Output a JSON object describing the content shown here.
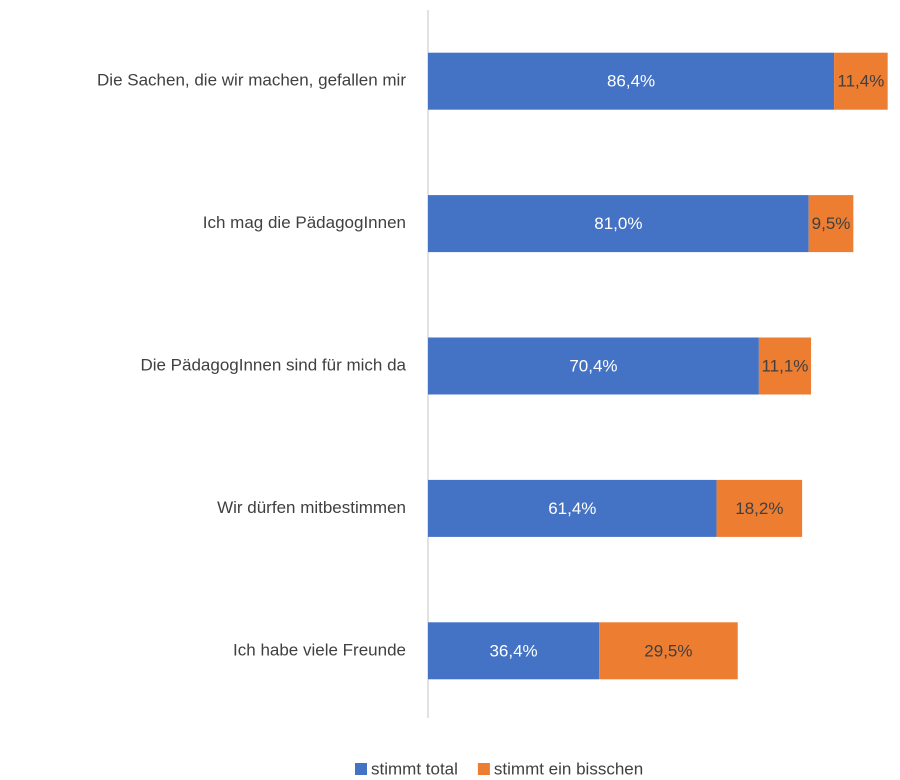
{
  "chart_data": {
    "type": "stacked-bar-horizontal",
    "categories": [
      "Die Sachen, die wir machen, gefallen mir",
      "Ich mag die PädagogInnen",
      "Die PädagogInnen  sind für mich da",
      "Wir dürfen mitbestimmen",
      "Ich habe viele Freunde"
    ],
    "series": [
      {
        "name": "stimmt total",
        "color": "#4472c4",
        "values": [
          86.4,
          81.0,
          70.4,
          61.4,
          36.4
        ],
        "value_labels": [
          "86,4%",
          "81,0%",
          "70,4%",
          "61,4%",
          "36,4%"
        ]
      },
      {
        "name": "stimmt ein bisschen",
        "color": "#ed7d31",
        "values": [
          11.4,
          9.5,
          11.1,
          18.2,
          29.5
        ],
        "value_labels": [
          "11,4%",
          "9,5%",
          "11,1%",
          "18,2%",
          "29,5%"
        ]
      }
    ],
    "xlim": [
      0,
      100
    ],
    "legend": "bottom"
  }
}
